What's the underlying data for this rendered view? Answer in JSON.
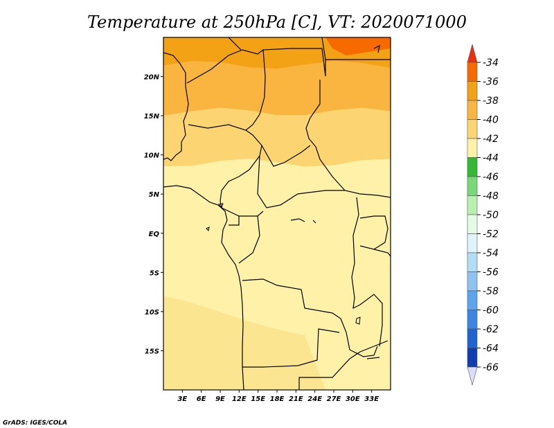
{
  "title": "Temperature at 250hPa [C], VT: 2020071000",
  "credit": "GrADS: IGES/COLA",
  "map": {
    "lon_range": [
      0,
      36
    ],
    "lat_range": [
      -20,
      25
    ],
    "lat_ticks": [
      {
        "lat": 20,
        "label": "20N"
      },
      {
        "lat": 15,
        "label": "15N"
      },
      {
        "lat": 10,
        "label": "10N"
      },
      {
        "lat": 5,
        "label": "5N"
      },
      {
        "lat": 0,
        "label": "EQ"
      },
      {
        "lat": -5,
        "label": "5S"
      },
      {
        "lat": -10,
        "label": "10S"
      },
      {
        "lat": -15,
        "label": "15S"
      }
    ],
    "lon_ticks": [
      {
        "lon": 3,
        "label": "3E"
      },
      {
        "lon": 6,
        "label": "6E"
      },
      {
        "lon": 9,
        "label": "9E"
      },
      {
        "lon": 12,
        "label": "12E"
      },
      {
        "lon": 15,
        "label": "15E"
      },
      {
        "lon": 18,
        "label": "18E"
      },
      {
        "lon": 21,
        "label": "21E"
      },
      {
        "lon": 24,
        "label": "24E"
      },
      {
        "lon": 27,
        "label": "27E"
      },
      {
        "lon": 30,
        "label": "30E"
      },
      {
        "lon": 33,
        "label": "33E"
      }
    ],
    "bands": [
      {
        "name": "band-37",
        "color": "#f3a216",
        "from_lat": 21.5
      },
      {
        "name": "band-39",
        "color": "#f9b53f",
        "from_lat": 15.5
      },
      {
        "name": "band-41",
        "color": "#fcd572",
        "from_lat": 9.0
      },
      {
        "name": "band-43",
        "color": "#fff2a8",
        "from_lat": -20
      }
    ]
  },
  "colorbar": {
    "levels": [
      "-34",
      "-36",
      "-38",
      "-40",
      "-42",
      "-44",
      "-46",
      "-48",
      "-50",
      "-52",
      "-54",
      "-56",
      "-58",
      "-60",
      "-62",
      "-64",
      "-66"
    ],
    "colors": [
      "#ef2e0e",
      "#f76a00",
      "#f3a216",
      "#f9b53f",
      "#fcd572",
      "#fff2a8",
      "#33b833",
      "#77d977",
      "#b8f0b0",
      "#e6fbe6",
      "#def3fb",
      "#b3dcf7",
      "#8ec3f3",
      "#5aa5ee",
      "#3a86e2",
      "#1f63d0",
      "#0f3eb0",
      "#0b1d7e",
      "#dcdcff"
    ]
  }
}
